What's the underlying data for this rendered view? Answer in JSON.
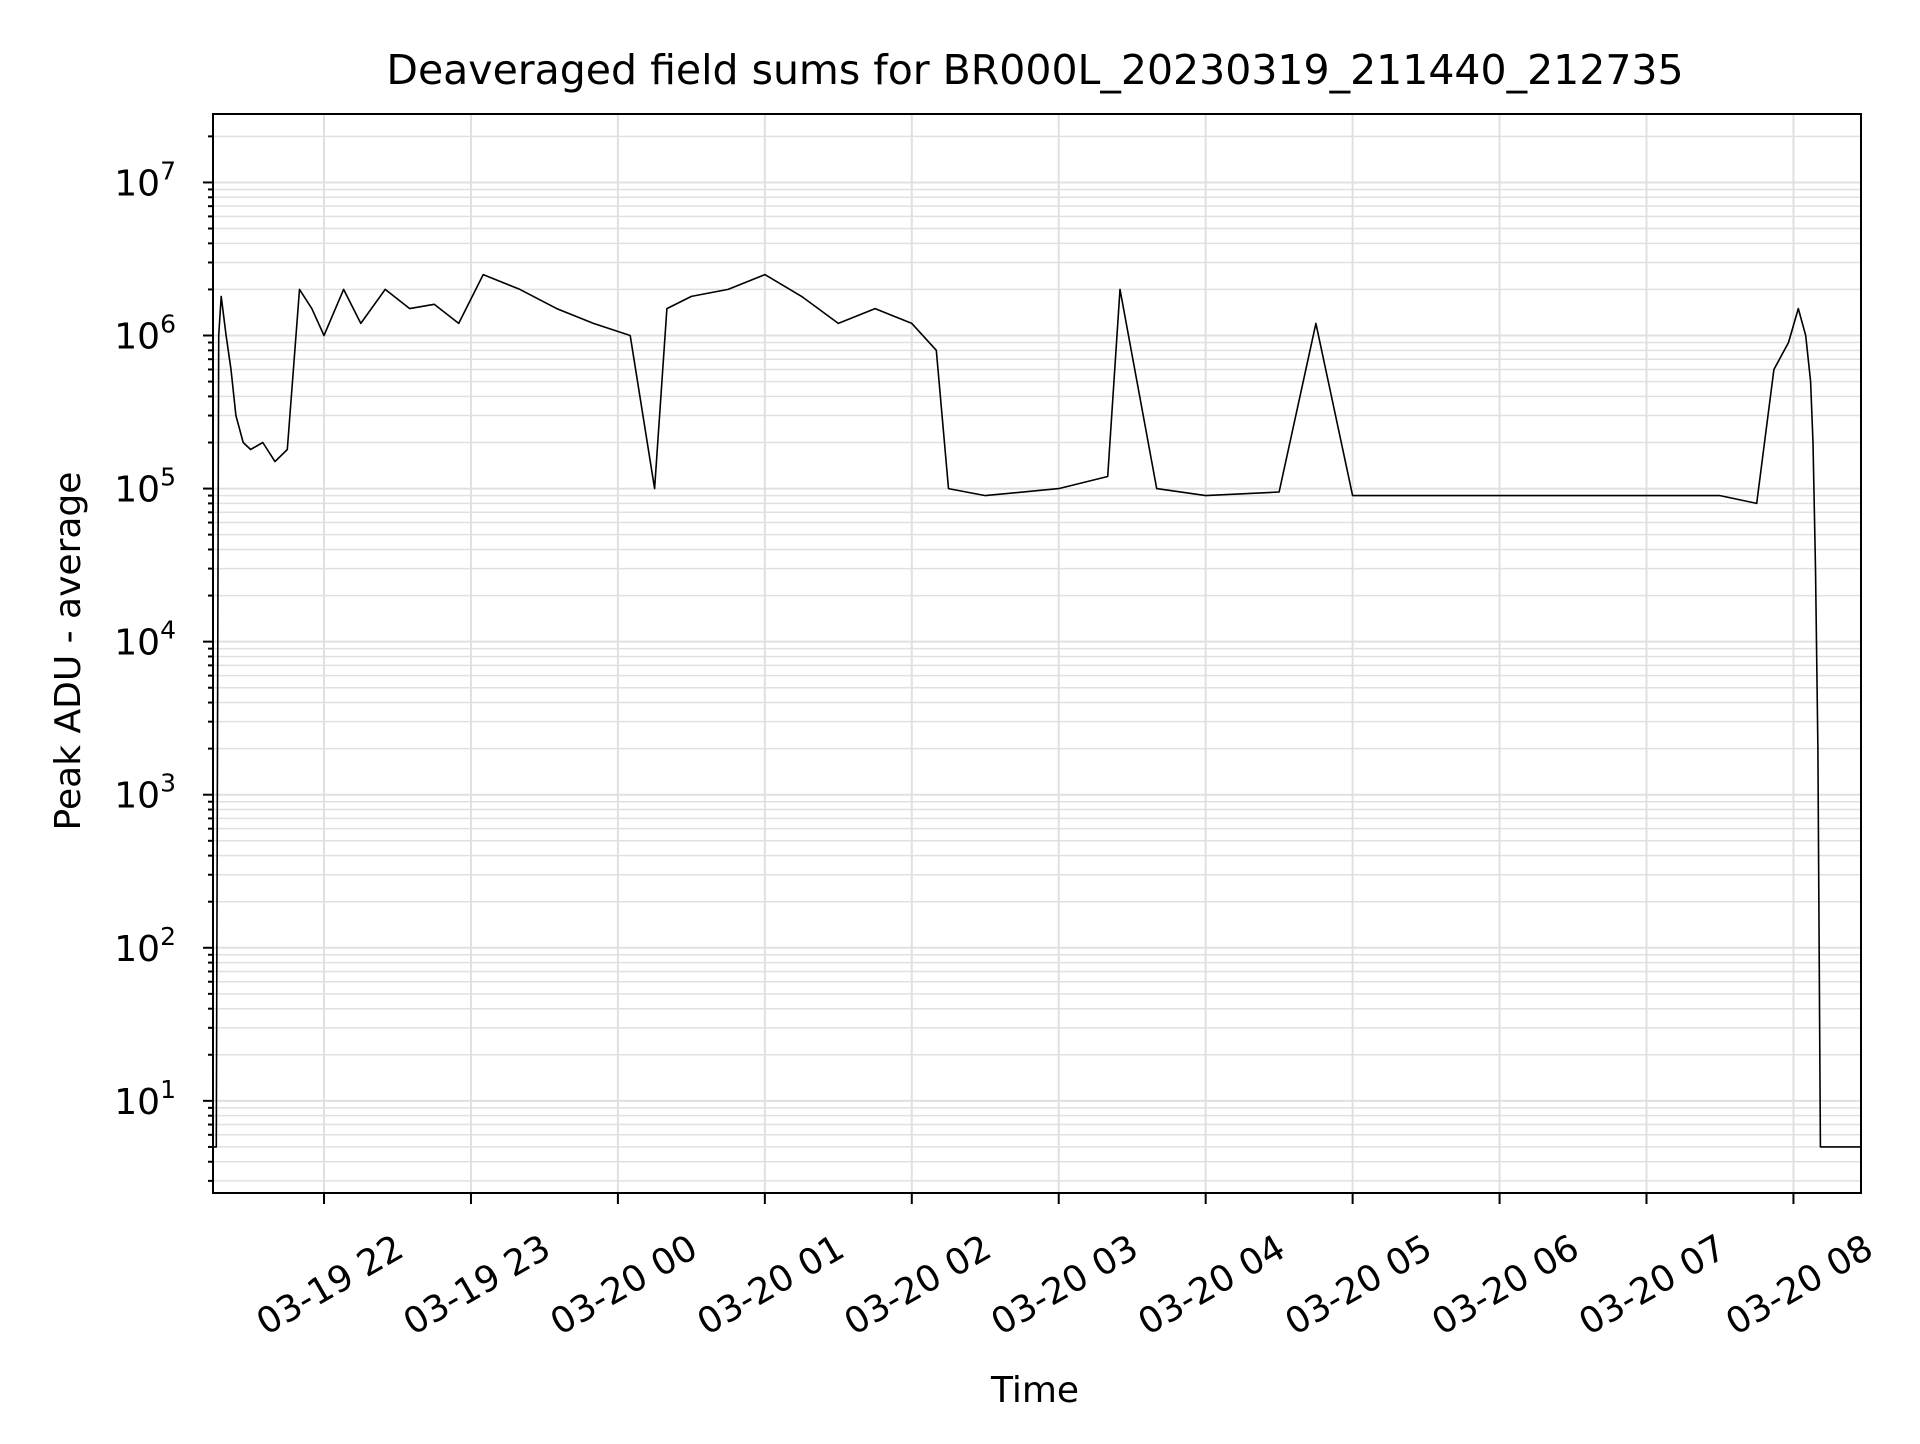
{
  "chart_data": {
    "type": "line",
    "title": "Deaveraged field sums for BR000L_20230319_211440_212735",
    "xlabel": "Time",
    "ylabel": "Peak ADU - average",
    "x_scale": "time",
    "y_scale": "log",
    "xlim": [
      "2023-03-19 21:14:40",
      "2023-03-20 08:27:35"
    ],
    "ylim": [
      2.5,
      28000000
    ],
    "x_tick_labels": [
      "03-19 22",
      "03-19 23",
      "03-20 00",
      "03-20 01",
      "03-20 02",
      "03-20 03",
      "03-20 04",
      "03-20 05",
      "03-20 06",
      "03-20 07",
      "03-20 08"
    ],
    "y_tick_labels": [
      {
        "base": "10",
        "exp": "1"
      },
      {
        "base": "10",
        "exp": "2"
      },
      {
        "base": "10",
        "exp": "3"
      },
      {
        "base": "10",
        "exp": "4"
      },
      {
        "base": "10",
        "exp": "5"
      },
      {
        "base": "10",
        "exp": "6"
      },
      {
        "base": "10",
        "exp": "7"
      }
    ],
    "grid": true,
    "grid_color": "#e0e0e0",
    "line_color": "#000000",
    "series": [
      {
        "x": [
          "2023-03-19 21:14:40",
          "2023-03-19 21:16:00",
          "2023-03-19 21:17:00",
          "2023-03-19 21:18:00",
          "2023-03-19 21:20:00",
          "2023-03-19 21:22:00",
          "2023-03-19 21:24:00",
          "2023-03-19 21:27:00",
          "2023-03-19 21:30:00",
          "2023-03-19 21:35:00",
          "2023-03-19 21:40:00",
          "2023-03-19 21:45:00",
          "2023-03-19 21:50:00",
          "2023-03-19 21:55:00",
          "2023-03-19 22:00:00",
          "2023-03-19 22:08:00",
          "2023-03-19 22:15:00",
          "2023-03-19 22:25:00",
          "2023-03-19 22:35:00",
          "2023-03-19 22:45:00",
          "2023-03-19 22:55:00",
          "2023-03-19 23:05:00",
          "2023-03-19 23:20:00",
          "2023-03-19 23:35:00",
          "2023-03-19 23:50:00",
          "2023-03-20 00:05:00",
          "2023-03-20 00:15:00",
          "2023-03-20 00:20:00",
          "2023-03-20 00:30:00",
          "2023-03-20 00:45:00",
          "2023-03-20 01:00:00",
          "2023-03-20 01:15:00",
          "2023-03-20 01:30:00",
          "2023-03-20 01:45:00",
          "2023-03-20 02:00:00",
          "2023-03-20 02:10:00",
          "2023-03-20 02:15:00",
          "2023-03-20 02:30:00",
          "2023-03-20 03:00:00",
          "2023-03-20 03:20:00",
          "2023-03-20 03:25:00",
          "2023-03-20 03:40:00",
          "2023-03-20 04:00:00",
          "2023-03-20 04:30:00",
          "2023-03-20 04:45:00",
          "2023-03-20 05:00:00",
          "2023-03-20 05:30:00",
          "2023-03-20 06:00:00",
          "2023-03-20 06:30:00",
          "2023-03-20 07:00:00",
          "2023-03-20 07:30:00",
          "2023-03-20 07:45:00",
          "2023-03-20 07:52:00",
          "2023-03-20 07:58:00",
          "2023-03-20 08:02:00",
          "2023-03-20 08:05:00",
          "2023-03-20 08:07:00",
          "2023-03-20 08:08:00",
          "2023-03-20 08:09:00",
          "2023-03-20 08:10:00",
          "2023-03-20 08:11:00",
          "2023-03-20 08:27:35"
        ],
        "y": [
          5,
          5,
          1000000,
          1800000,
          1000000,
          600000,
          300000,
          200000,
          180000,
          200000,
          150000,
          180000,
          2000000,
          1500000,
          1000000,
          2000000,
          1200000,
          2000000,
          1500000,
          1600000,
          1200000,
          2500000,
          2000000,
          1500000,
          1200000,
          1000000,
          100000,
          1500000,
          1800000,
          2000000,
          2500000,
          1800000,
          1200000,
          1500000,
          1200000,
          800000,
          100000,
          90000,
          100000,
          120000,
          2000000,
          100000,
          90000,
          95000,
          1200000,
          90000,
          90000,
          90000,
          90000,
          90000,
          90000,
          80000,
          600000,
          900000,
          1500000,
          1000000,
          500000,
          200000,
          30000,
          2000,
          5,
          5
        ]
      }
    ]
  }
}
